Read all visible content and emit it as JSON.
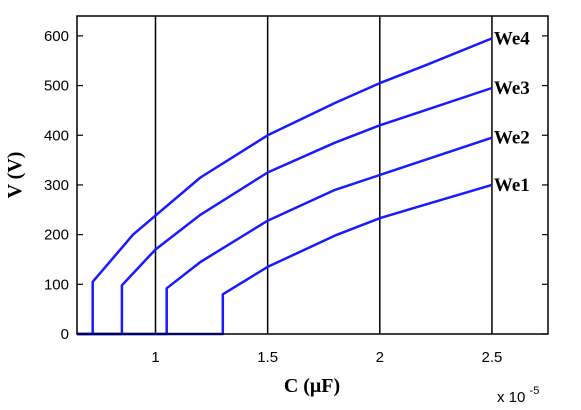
{
  "chart_data": {
    "type": "line",
    "xlabel": "C (μF)",
    "ylabel": "V (V)",
    "x_multiplier_label": "x 10",
    "x_multiplier_exponent": "-5",
    "xlim": [
      6.5e-06,
      2.75e-05
    ],
    "ylim": [
      0,
      640
    ],
    "xticks": [
      1e-05,
      1.5e-05,
      2e-05,
      2.5e-05
    ],
    "xtick_labels": [
      "1",
      "1.5",
      "2",
      "2.5"
    ],
    "yticks": [
      0,
      100,
      200,
      300,
      400,
      500,
      600
    ],
    "ytick_labels": [
      "0",
      "100",
      "200",
      "300",
      "400",
      "500",
      "600"
    ],
    "grid": true,
    "line_color": "#1a1aff",
    "series": [
      {
        "name": "We4",
        "x": [
          6.5e-06,
          7.2e-06,
          7.2e-06,
          9e-06,
          1.2e-05,
          1.5e-05,
          1.8e-05,
          2e-05,
          2.2e-05,
          2.5e-05
        ],
        "y": [
          0,
          0,
          105,
          200,
          315,
          400,
          465,
          505,
          540,
          595
        ]
      },
      {
        "name": "We3",
        "x": [
          6.5e-06,
          8.5e-06,
          8.5e-06,
          1e-05,
          1.2e-05,
          1.5e-05,
          1.8e-05,
          2e-05,
          2.2e-05,
          2.5e-05
        ],
        "y": [
          0,
          0,
          98,
          170,
          240,
          325,
          385,
          420,
          450,
          495
        ]
      },
      {
        "name": "We2",
        "x": [
          6.5e-06,
          1.05e-05,
          1.05e-05,
          1.2e-05,
          1.5e-05,
          1.8e-05,
          2e-05,
          2.2e-05,
          2.5e-05
        ],
        "y": [
          0,
          0,
          92,
          145,
          228,
          290,
          320,
          350,
          395
        ]
      },
      {
        "name": "We1",
        "x": [
          6.5e-06,
          1.3e-05,
          1.3e-05,
          1.5e-05,
          1.8e-05,
          2e-05,
          2.2e-05,
          2.5e-05
        ],
        "y": [
          0,
          0,
          80,
          135,
          198,
          233,
          260,
          300
        ]
      }
    ]
  }
}
